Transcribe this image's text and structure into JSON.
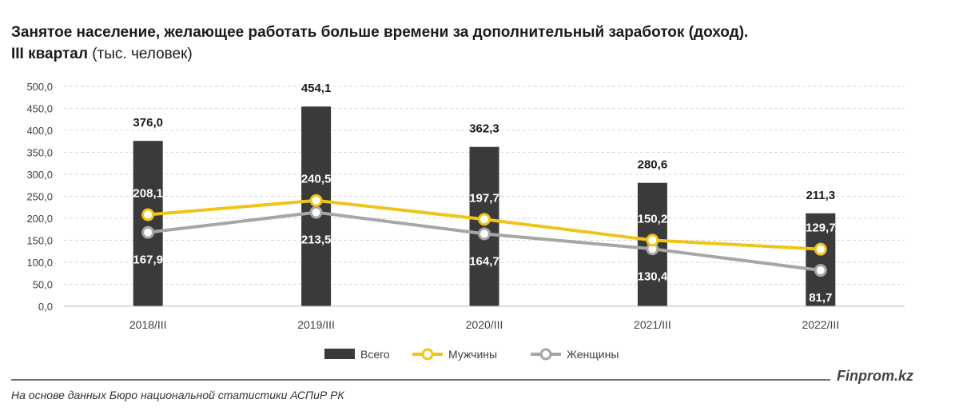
{
  "header": {
    "title": "Занятое население, желающее работать больше времени за дополнительный заработок (доход).",
    "subtitle_bold": "III квартал",
    "subtitle_rest": " (тыс. человек)"
  },
  "chart_data": {
    "type": "bar",
    "categories": [
      "2018/III",
      "2019/III",
      "2020/III",
      "2021/III",
      "2022/III"
    ],
    "ylim": [
      0,
      500
    ],
    "yticks": [
      "0,0",
      "50,0",
      "100,0",
      "150,0",
      "200,0",
      "250,0",
      "300,0",
      "350,0",
      "400,0",
      "450,0",
      "500,0"
    ],
    "grid": true,
    "legend_position": "bottom",
    "series": [
      {
        "name": "Всего",
        "kind": "bar",
        "color": "#3a3a3a",
        "values": [
          376.0,
          454.1,
          362.3,
          280.6,
          211.3
        ],
        "labels": [
          "376,0",
          "454,1",
          "362,3",
          "280,6",
          "211,3"
        ]
      },
      {
        "name": "Мужчины",
        "kind": "line",
        "color": "#f0c419",
        "values": [
          208.1,
          240.5,
          197.7,
          150.2,
          129.7
        ],
        "labels": [
          "208,1",
          "240,5",
          "197,7",
          "150,2",
          "129,7"
        ]
      },
      {
        "name": "Женщины",
        "kind": "line",
        "color": "#a6a6a6",
        "values": [
          167.9,
          213.5,
          164.7,
          130.4,
          81.7
        ],
        "labels": [
          "167,9",
          "213,5",
          "164,7",
          "130,4",
          "81,7"
        ]
      }
    ]
  },
  "footer": {
    "logo": "Finprom.kz",
    "source": "На основе данных Бюро национальной статистики АСПиР РК"
  }
}
